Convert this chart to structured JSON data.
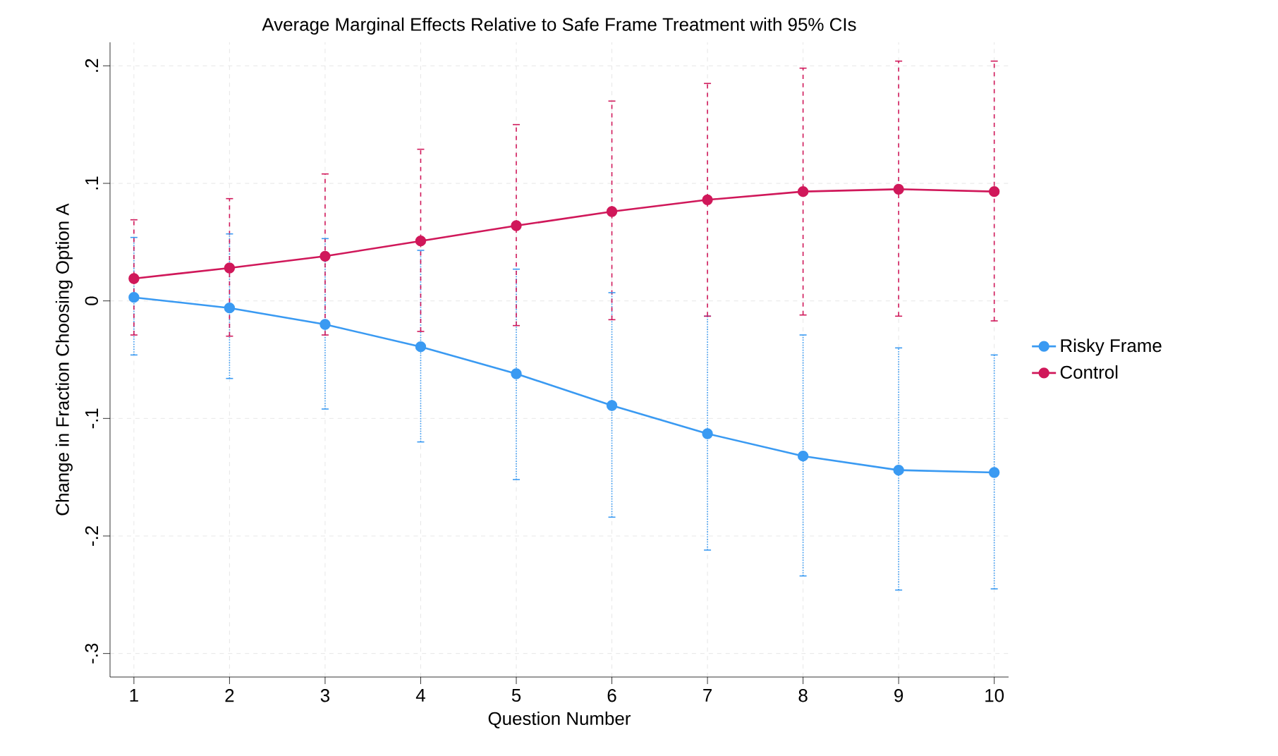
{
  "chart_data": {
    "type": "line",
    "title": "Average Marginal Effects Relative to Safe Frame Treatment with 95% CIs",
    "xlabel": "Question Number",
    "ylabel": "Change in Fraction Choosing Option A",
    "x": [
      1,
      2,
      3,
      4,
      5,
      6,
      7,
      8,
      9,
      10
    ],
    "series": [
      {
        "name": "Risky Frame",
        "color": "#3a9af2",
        "values": [
          0.003,
          -0.006,
          -0.02,
          -0.039,
          -0.062,
          -0.089,
          -0.113,
          -0.132,
          -0.144,
          -0.146
        ],
        "errors": [
          [
            -0.046,
            0.054
          ],
          [
            -0.066,
            0.057
          ],
          [
            -0.092,
            0.053
          ],
          [
            -0.12,
            0.043
          ],
          [
            -0.152,
            0.027
          ],
          [
            -0.184,
            0.007
          ],
          [
            -0.212,
            -0.013
          ],
          [
            -0.234,
            -0.029
          ],
          [
            -0.246,
            -0.04
          ],
          [
            -0.245,
            -0.046
          ]
        ]
      },
      {
        "name": "Control",
        "color": "#d0185a",
        "values": [
          0.019,
          0.028,
          0.038,
          0.051,
          0.064,
          0.076,
          0.086,
          0.093,
          0.095,
          0.093
        ],
        "errors": [
          [
            -0.029,
            0.069
          ],
          [
            -0.03,
            0.087
          ],
          [
            -0.029,
            0.108
          ],
          [
            -0.026,
            0.129
          ],
          [
            -0.021,
            0.15
          ],
          [
            -0.016,
            0.17
          ],
          [
            -0.013,
            0.185
          ],
          [
            -0.012,
            0.198
          ],
          [
            -0.013,
            0.204
          ],
          [
            -0.017,
            0.204
          ]
        ]
      }
    ],
    "xlim": [
      0.75,
      10.15
    ],
    "ylim": [
      -0.32,
      0.22
    ],
    "xticks": [
      1,
      2,
      3,
      4,
      5,
      6,
      7,
      8,
      9,
      10
    ],
    "yticks": [
      {
        "value": -0.3,
        "label": "-.3"
      },
      {
        "value": -0.2,
        "label": "-.2"
      },
      {
        "value": -0.1,
        "label": "-.1"
      },
      0,
      {
        "value": 0.1,
        "label": ".1"
      },
      {
        "value": 0.2,
        "label": ".2"
      }
    ],
    "grid": true,
    "legend": "right",
    "marker": "circle",
    "line_style": "solid"
  }
}
